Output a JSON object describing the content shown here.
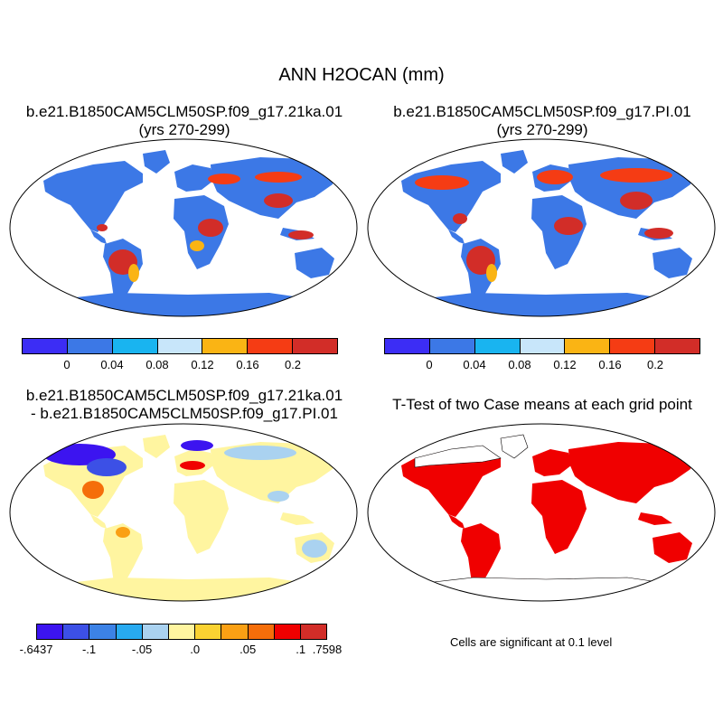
{
  "figure": {
    "title": "ANN H2OCAN (mm)"
  },
  "panels": {
    "top_left": {
      "title_line1": "b.e21.B1850CAM5CLM50SP.f09_g17.21ka.01",
      "title_line2": "(yrs 270-299)"
    },
    "top_right": {
      "title_line1": "b.e21.B1850CAM5CLM50SP.f09_g17.PI.01",
      "title_line2": "(yrs 270-299)"
    },
    "bottom_left": {
      "title_line1": "b.e21.B1850CAM5CLM50SP.f09_g17.21ka.01",
      "title_line2": "- b.e21.B1850CAM5CLM50SP.f09_g17.PI.01"
    },
    "bottom_right": {
      "title_line1": "T-Test of two Case means at each grid point",
      "note": "Cells are significant at 0.1 level"
    }
  },
  "colorbars": {
    "abs": {
      "colors": [
        "#3c2df5",
        "#3c78e6",
        "#19b4f0",
        "#c8e6fa",
        "#fab414",
        "#f53c14",
        "#d22d28"
      ],
      "labels": [
        "0",
        "0.04",
        "0.08",
        "0.12",
        "0.16",
        "0.2"
      ]
    },
    "diff": {
      "colors": [
        "#3c14f0",
        "#3c50e6",
        "#3c82e6",
        "#28aaf0",
        "#aad2f0",
        "#fff5a0",
        "#fad232",
        "#faa014",
        "#f56e0a",
        "#f00000",
        "#d22d28"
      ],
      "labels": [
        "-.6437",
        "-.1",
        "-.05",
        ".0",
        ".05",
        ".1",
        ".7598"
      ]
    }
  }
}
